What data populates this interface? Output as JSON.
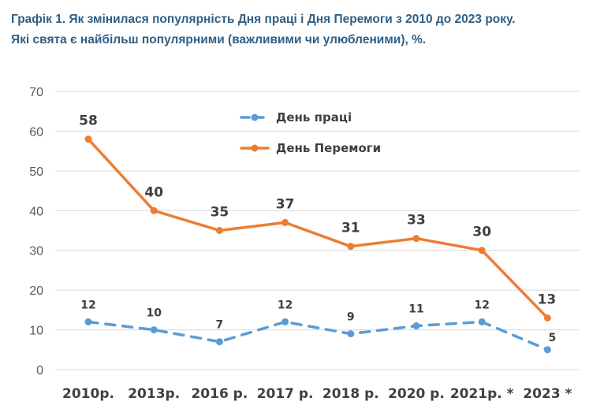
{
  "header": {
    "title_line1": "Графік 1.  Як змінилася популярність Дня праці і Дня Перемоги з 2010 до 2023 року.",
    "title_line2": "Які свята є найбільш популярними (важливими чи улюбленими), %."
  },
  "chart_data": {
    "type": "line",
    "categories": [
      "2010р.",
      "2013р.",
      "2016 р.",
      "2017 р.",
      "2018 р.",
      "2020 р.",
      "2021р. *",
      "2023 *"
    ],
    "series": [
      {
        "name": "День праці",
        "values": [
          12,
          10,
          7,
          12,
          9,
          11,
          12,
          5
        ],
        "color": "#5b9bd5",
        "style": "dashed"
      },
      {
        "name": "День Перемоги",
        "values": [
          58,
          40,
          35,
          37,
          31,
          33,
          30,
          13
        ],
        "color": "#ed7d31",
        "style": "solid"
      }
    ],
    "ylim": [
      0,
      70
    ],
    "yticks": [
      0,
      10,
      20,
      30,
      40,
      50,
      60,
      70
    ],
    "grid": true,
    "legend_position": "top-center"
  }
}
